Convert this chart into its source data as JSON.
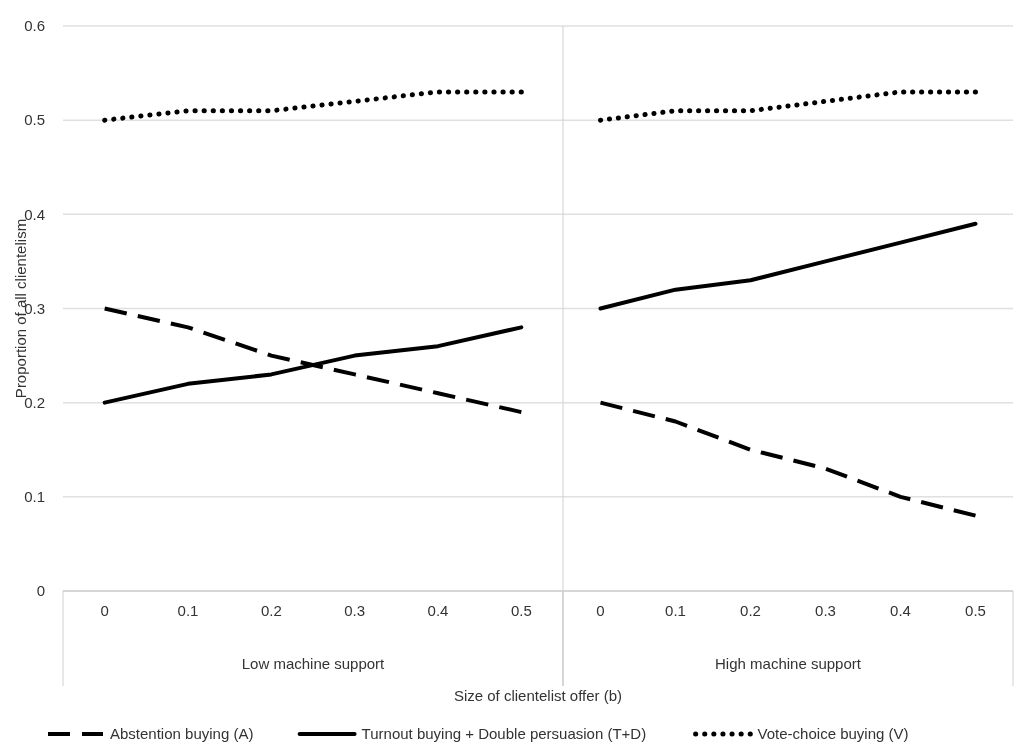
{
  "chart_data": [
    {
      "type": "line",
      "xlabel": "Low machine support",
      "ylabel": "Proportion of all clientelism",
      "categories": [
        "0",
        "0.1",
        "0.2",
        "0.3",
        "0.4",
        "0.5"
      ],
      "ylim": [
        0,
        0.6
      ],
      "yticks": [
        0,
        0.1,
        0.2,
        0.3,
        0.4,
        0.5,
        0.6
      ],
      "grid": "y",
      "legend": "bottom",
      "annotations": [
        "Size of clientelist offer (b)"
      ],
      "series": [
        {
          "name": "Abstention buying (A)",
          "color": "#000000",
          "line_style": "dashed",
          "values": [
            0.3,
            0.28,
            0.25,
            0.23,
            0.21,
            0.19
          ]
        },
        {
          "name": "Turnout buying + Double persuasion (T+D)",
          "color": "#000000",
          "line_style": "solid",
          "values": [
            0.2,
            0.22,
            0.23,
            0.25,
            0.26,
            0.28
          ]
        },
        {
          "name": "Vote-choice buying (V)",
          "color": "#000000",
          "line_style": "dotted",
          "values": [
            0.5,
            0.51,
            0.51,
            0.52,
            0.53,
            0.53
          ]
        }
      ]
    },
    {
      "type": "line",
      "xlabel": "High machine support",
      "categories": [
        "0",
        "0.1",
        "0.2",
        "0.3",
        "0.4",
        "0.5"
      ],
      "ylim": [
        0,
        0.6
      ],
      "grid": "y",
      "tick_labels": "x",
      "series": [
        {
          "color": "#000000",
          "line_style": "dashed",
          "values": [
            0.2,
            0.18,
            0.15,
            0.13,
            0.1,
            0.08
          ]
        },
        {
          "color": "#000000",
          "line_style": "solid",
          "values": [
            0.3,
            0.32,
            0.33,
            0.35,
            0.37,
            0.39
          ]
        },
        {
          "color": "#000000",
          "line_style": "dotted",
          "values": [
            0.5,
            0.51,
            0.51,
            0.52,
            0.53,
            0.53
          ]
        }
      ]
    }
  ]
}
